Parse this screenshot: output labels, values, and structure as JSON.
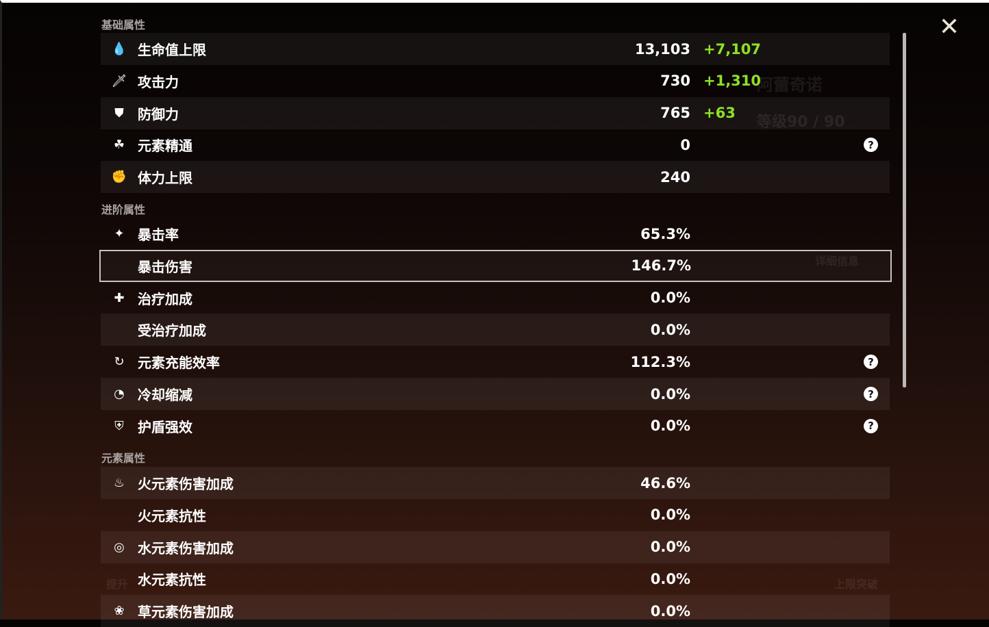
{
  "background": {
    "char_name": "阿蕾奇诺",
    "level": "等级90 / 90",
    "details": "详细信息",
    "ascend": "上限突破",
    "upgrade": "提升"
  },
  "sections": {
    "base": "基础属性",
    "advanced": "进阶属性",
    "elemental": "元素属性"
  },
  "base": [
    {
      "icon": "hp-drop-icon",
      "label": "生命值上限",
      "value": "13,103",
      "bonus": "+7,107"
    },
    {
      "icon": "sword-icon",
      "label": "攻击力",
      "value": "730",
      "bonus": "+1,310"
    },
    {
      "icon": "shield-icon",
      "label": "防御力",
      "value": "765",
      "bonus": "+63"
    },
    {
      "icon": "elemental-mastery-icon",
      "label": "元素精通",
      "value": "0",
      "help": true
    },
    {
      "icon": "stamina-icon",
      "label": "体力上限",
      "value": "240"
    }
  ],
  "advanced": [
    {
      "icon": "crit-rate-icon",
      "label": "暴击率",
      "value": "65.3%"
    },
    {
      "icon": "",
      "label": "暴击伤害",
      "value": "146.7%",
      "selected": true
    },
    {
      "icon": "healing-cross-icon",
      "label": "治疗加成",
      "value": "0.0%"
    },
    {
      "icon": "",
      "label": "受治疗加成",
      "value": "0.0%"
    },
    {
      "icon": "energy-recharge-icon",
      "label": "元素充能效率",
      "value": "112.3%",
      "help": true
    },
    {
      "icon": "cooldown-icon",
      "label": "冷却缩减",
      "value": "0.0%",
      "help": true
    },
    {
      "icon": "shield-strength-icon",
      "label": "护盾强效",
      "value": "0.0%",
      "help": true
    }
  ],
  "elemental": [
    {
      "icon": "pyro-icon",
      "label": "火元素伤害加成",
      "value": "46.6%"
    },
    {
      "icon": "",
      "label": "火元素抗性",
      "value": "0.0%"
    },
    {
      "icon": "hydro-icon",
      "label": "水元素伤害加成",
      "value": "0.0%"
    },
    {
      "icon": "",
      "label": "水元素抗性",
      "value": "0.0%"
    },
    {
      "icon": "dendro-icon",
      "label": "草元素伤害加成",
      "value": "0.0%"
    }
  ],
  "colors": {
    "bonus": "#8fe024",
    "selected_border": "#c9c3c0"
  }
}
